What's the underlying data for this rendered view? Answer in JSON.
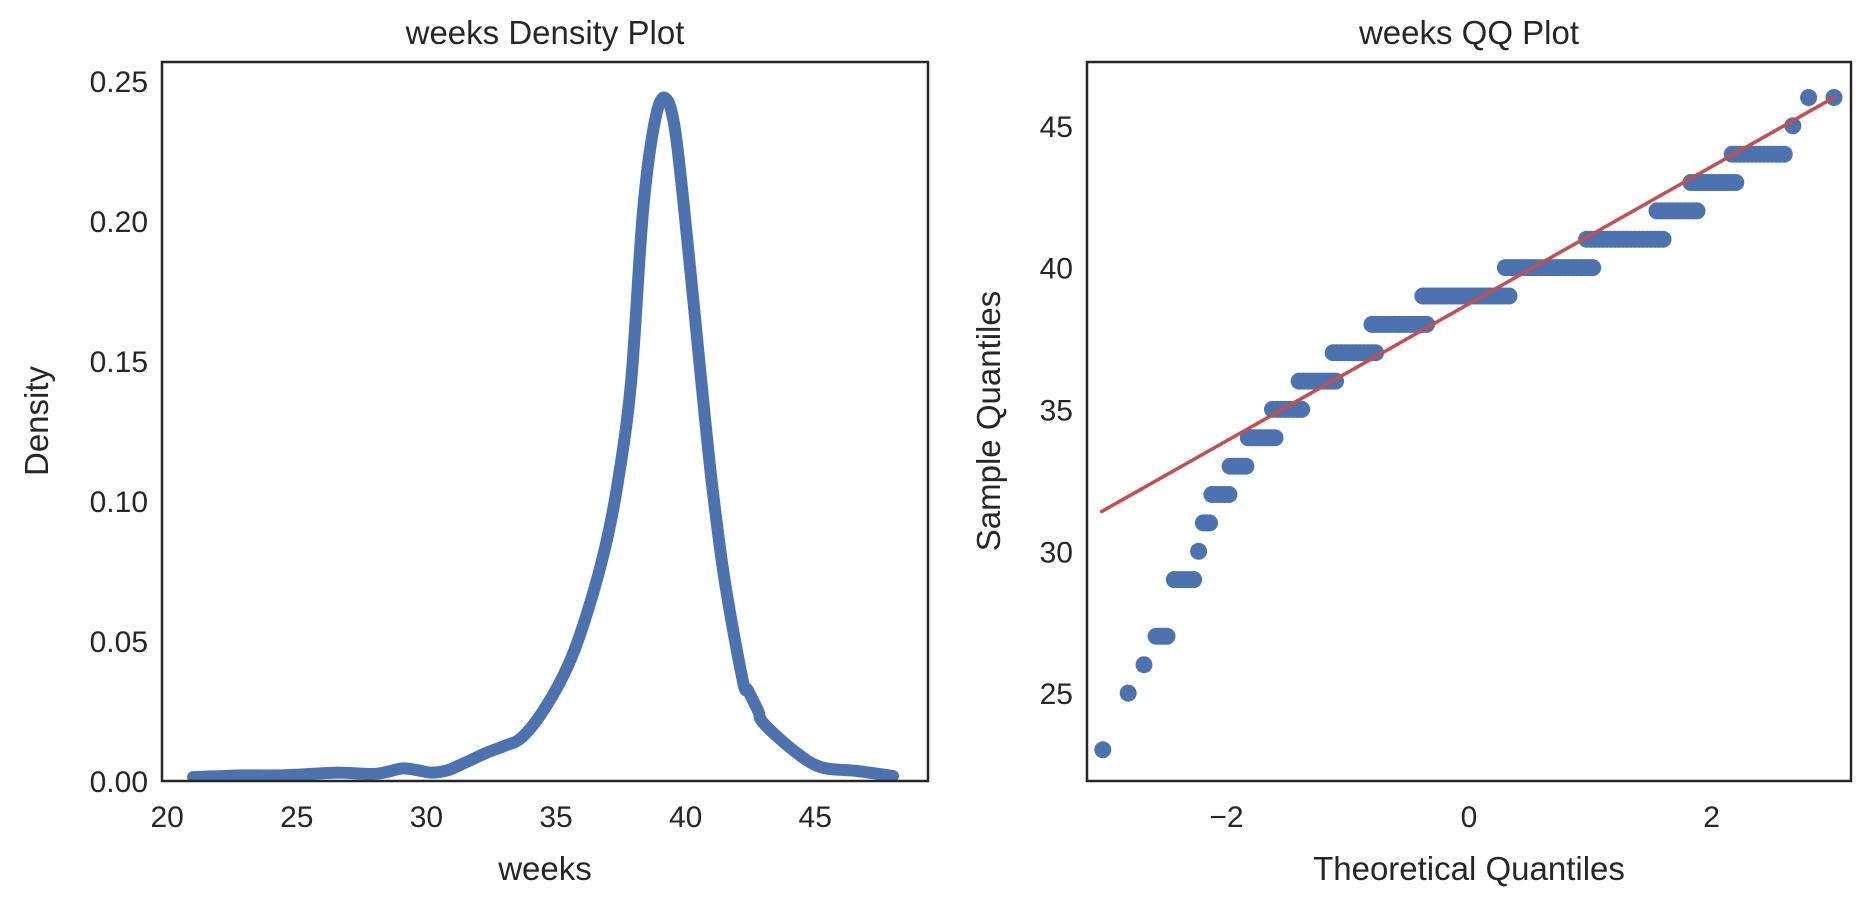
{
  "figure": {
    "background": "#ffffff",
    "text_color": "#262626"
  },
  "chart_data": [
    {
      "type": "line",
      "title": "weeks Density Plot",
      "xlabel": "weeks",
      "ylabel": "Density",
      "xlim": [
        19.8,
        49.35
      ],
      "ylim": [
        0,
        0.2568
      ],
      "xticks": [
        20,
        25,
        30,
        35,
        40,
        45
      ],
      "xtick_labels": [
        "20",
        "25",
        "30",
        "35",
        "40",
        "45"
      ],
      "yticks": [
        0.0,
        0.05,
        0.1,
        0.15,
        0.2,
        0.25
      ],
      "ytick_labels": [
        "0.00",
        "0.05",
        "0.10",
        "0.15",
        "0.20",
        "0.25"
      ],
      "grid": false,
      "series": [
        {
          "name": "weeks KDE",
          "color": "#4c72b0",
          "x": [
            21.0,
            22.0,
            22.9,
            24.2,
            25.5,
            26.6,
            27.9,
            28.5,
            29.1,
            29.7,
            30.2,
            30.8,
            31.3,
            32.3,
            33.0,
            33.7,
            34.6,
            35.5,
            36.2,
            36.9,
            37.4,
            37.9,
            38.35,
            38.8,
            39.2,
            39.6,
            40.1,
            40.6,
            41.0,
            41.5,
            42.2,
            42.4,
            42.8,
            43.0,
            44.15,
            45.2,
            46.6,
            48.0
          ],
          "y": [
            0.0014,
            0.0017,
            0.002,
            0.002,
            0.0025,
            0.003,
            0.0025,
            0.0033,
            0.0045,
            0.0038,
            0.003,
            0.0038,
            0.0057,
            0.01,
            0.0125,
            0.0157,
            0.0264,
            0.042,
            0.06,
            0.0836,
            0.1075,
            0.143,
            0.203,
            0.235,
            0.244,
            0.232,
            0.19,
            0.143,
            0.1075,
            0.072,
            0.036,
            0.0325,
            0.025,
            0.0207,
            0.011,
            0.005,
            0.0036,
            0.0018
          ]
        }
      ]
    },
    {
      "type": "scatter",
      "title": "weeks QQ Plot",
      "xlabel": "Theoretical Quantiles",
      "ylabel": "Sample Quantiles",
      "xlim": [
        -3.15,
        3.15
      ],
      "ylim": [
        21.9,
        47.25
      ],
      "xticks": [
        -2,
        0,
        2
      ],
      "xtick_labels": [
        "−2",
        "0",
        "2"
      ],
      "yticks": [
        25,
        30,
        35,
        40,
        45
      ],
      "ytick_labels": [
        "25",
        "30",
        "35",
        "40",
        "45"
      ],
      "grid": false,
      "points_color": "#4c72b0",
      "line_color": "#c44e52",
      "reference_line": {
        "x": [
          -3.03,
          3.01
        ],
        "y": [
          31.4,
          46.0
        ]
      },
      "point_runs": [
        {
          "y": 23,
          "x_from": -3.02,
          "x_to": -3.02
        },
        {
          "y": 25,
          "x_from": -2.81,
          "x_to": -2.81
        },
        {
          "y": 26,
          "x_from": -2.68,
          "x_to": -2.68
        },
        {
          "y": 27,
          "x_from": -2.58,
          "x_to": -2.49
        },
        {
          "y": 29,
          "x_from": -2.43,
          "x_to": -2.27
        },
        {
          "y": 30,
          "x_from": -2.23,
          "x_to": -2.23
        },
        {
          "y": 31,
          "x_from": -2.19,
          "x_to": -2.14
        },
        {
          "y": 32,
          "x_from": -2.12,
          "x_to": -1.98
        },
        {
          "y": 33,
          "x_from": -1.97,
          "x_to": -1.84
        },
        {
          "y": 34,
          "x_from": -1.82,
          "x_to": -1.6
        },
        {
          "y": 35,
          "x_from": -1.62,
          "x_to": -1.38
        },
        {
          "y": 36,
          "x_from": -1.4,
          "x_to": -1.1
        },
        {
          "y": 37,
          "x_from": -1.12,
          "x_to": -0.77
        },
        {
          "y": 38,
          "x_from": -0.8,
          "x_to": -0.35
        },
        {
          "y": 39,
          "x_from": -0.38,
          "x_to": 0.33
        },
        {
          "y": 40,
          "x_from": 0.3,
          "x_to": 1.02
        },
        {
          "y": 41,
          "x_from": 0.97,
          "x_to": 1.6
        },
        {
          "y": 42,
          "x_from": 1.55,
          "x_to": 1.88
        },
        {
          "y": 43,
          "x_from": 1.83,
          "x_to": 2.2
        },
        {
          "y": 44,
          "x_from": 2.17,
          "x_to": 2.6
        },
        {
          "y": 45,
          "x_from": 2.67,
          "x_to": 2.67
        },
        {
          "y": 46,
          "x_from": 2.8,
          "x_to": 2.8
        },
        {
          "y": 46,
          "x_from": 3.01,
          "x_to": 3.01
        }
      ]
    }
  ]
}
